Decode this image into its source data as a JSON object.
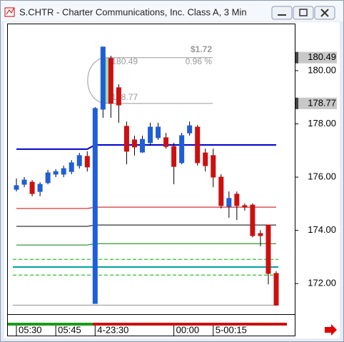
{
  "window": {
    "title": "S.CHTR - Charter Communications, Inc. Class A, 3 Min"
  },
  "chart_data": {
    "type": "candlestick",
    "categories": [
      "05:30",
      null,
      null,
      null,
      null,
      "05:45",
      null,
      null,
      null,
      null,
      "4-23:30",
      null,
      null,
      null,
      null,
      null,
      null,
      null,
      null,
      null,
      "00:00",
      null,
      null,
      null,
      null,
      "5-00:15",
      null,
      null,
      null,
      null,
      null,
      null,
      null,
      null
    ],
    "open": [
      175.54,
      175.73,
      175.81,
      175.46,
      175.79,
      176.11,
      176.11,
      176.21,
      176.43,
      176.78,
      171.25,
      178.55,
      180.46,
      179.36,
      177.91,
      177.4,
      176.94,
      177.29,
      177.48,
      177.48,
      177.15,
      176.54,
      177.66,
      177.88,
      176.91,
      176.81,
      176.0,
      174.9,
      175.36,
      174.93,
      174.95,
      173.88,
      174.2,
      172.38
    ],
    "high": [
      175.95,
      176.0,
      175.89,
      175.81,
      176.27,
      176.3,
      176.43,
      176.64,
      176.91,
      176.97,
      178.63,
      180.89,
      180.56,
      179.49,
      178.09,
      177.56,
      177.56,
      178.04,
      178.04,
      177.66,
      177.29,
      177.66,
      178.09,
      177.96,
      177.07,
      177.07,
      176.11,
      175.46,
      175.46,
      175.01,
      175.01,
      174.01,
      174.2,
      172.46
    ],
    "low": [
      175.46,
      175.62,
      175.28,
      175.28,
      175.73,
      176.0,
      176.0,
      176.11,
      176.32,
      176.21,
      171.25,
      178.23,
      178.23,
      178.04,
      176.48,
      176.81,
      176.91,
      177.18,
      177.4,
      177.07,
      175.73,
      176.48,
      177.56,
      176.43,
      176.21,
      175.62,
      174.82,
      174.47,
      174.39,
      174.74,
      173.74,
      173.4,
      171.97,
      171.17
    ],
    "close": [
      175.68,
      175.89,
      175.38,
      175.73,
      176.16,
      176.21,
      176.32,
      176.54,
      176.81,
      176.38,
      178.58,
      180.89,
      178.77,
      178.71,
      176.97,
      177.13,
      177.42,
      177.88,
      177.88,
      177.15,
      176.4,
      177.56,
      177.93,
      176.54,
      176.43,
      176.0,
      174.93,
      175.2,
      174.93,
      174.87,
      173.8,
      173.8,
      172.38,
      171.19
    ],
    "up_color": "#1f5fd6",
    "down_color": "#cc1010",
    "lines": [
      {
        "color": "#0000cc",
        "width": 2,
        "values": [
          177.05,
          177.05,
          177.05,
          177.05,
          177.05,
          177.05,
          177.05,
          177.05,
          177.05,
          177.05,
          177.21,
          177.21,
          177.21,
          177.21,
          177.21,
          177.21,
          177.21,
          177.21,
          177.21,
          177.21,
          177.21,
          177.21,
          177.21,
          177.21,
          177.21,
          177.21,
          177.21,
          177.21,
          177.21,
          177.21,
          177.21,
          177.21,
          177.21,
          177.21
        ]
      },
      {
        "color": "#cc0000",
        "width": 1,
        "values": [
          174.82,
          174.82,
          174.82,
          174.82,
          174.82,
          174.82,
          174.82,
          174.82,
          174.82,
          174.82,
          174.87,
          174.87,
          174.87,
          174.87,
          174.87,
          174.87,
          174.87,
          174.87,
          174.87,
          174.87,
          174.87,
          174.87,
          174.87,
          174.87,
          174.87,
          174.87,
          174.87,
          174.87,
          174.87,
          174.87,
          174.87,
          174.87,
          174.87,
          174.87
        ]
      },
      {
        "color": "#000000",
        "width": 1,
        "values": [
          174.15,
          174.15,
          174.15,
          174.15,
          174.15,
          174.15,
          174.15,
          174.15,
          174.15,
          174.15,
          174.2,
          174.2,
          174.2,
          174.2,
          174.2,
          174.2,
          174.2,
          174.2,
          174.2,
          174.2,
          174.2,
          174.2,
          174.2,
          174.2,
          174.2,
          174.2,
          174.2,
          174.2,
          174.2,
          174.2,
          174.2,
          174.2,
          174.2,
          174.2
        ]
      },
      {
        "color": "#008000",
        "width": 1,
        "values": [
          173.45,
          173.45,
          173.45,
          173.45,
          173.45,
          173.45,
          173.45,
          173.45,
          173.45,
          173.45,
          173.5,
          173.5,
          173.5,
          173.5,
          173.5,
          173.5,
          173.5,
          173.5,
          173.5,
          173.5,
          173.5,
          173.5,
          173.5,
          173.5,
          173.5,
          173.5,
          173.5,
          173.5,
          173.5,
          173.5,
          173.5,
          173.5,
          173.5,
          173.5
        ]
      }
    ],
    "levels": [
      {
        "value": 172.91,
        "color": "#00b000",
        "width": 1,
        "dashed": true
      },
      {
        "value": 172.32,
        "color": "#00b000",
        "width": 1,
        "dashed": true
      },
      {
        "value": 172.62,
        "color": "#00a0a0",
        "width": 2,
        "dashed": false
      },
      {
        "value": 171.19,
        "color": "#909090",
        "width": 1,
        "dashed": false
      }
    ],
    "measure": {
      "change": {
        "value": 1.72,
        "label": "$1.72"
      },
      "percent": {
        "value": 0.96,
        "label": "0.96 %"
      },
      "from": 180.49,
      "to": 178.77
    },
    "price_labels": [
      180.49,
      178.77
    ],
    "ylim": [
      170.85,
      181.77
    ],
    "yticks": [
      {
        "value": 172,
        "label": "172.00"
      },
      {
        "value": 174,
        "label": "174.00"
      },
      {
        "value": 176,
        "label": "176.00"
      },
      {
        "value": 178,
        "label": "178.00"
      },
      {
        "value": 180,
        "label": "180.00"
      }
    ]
  }
}
